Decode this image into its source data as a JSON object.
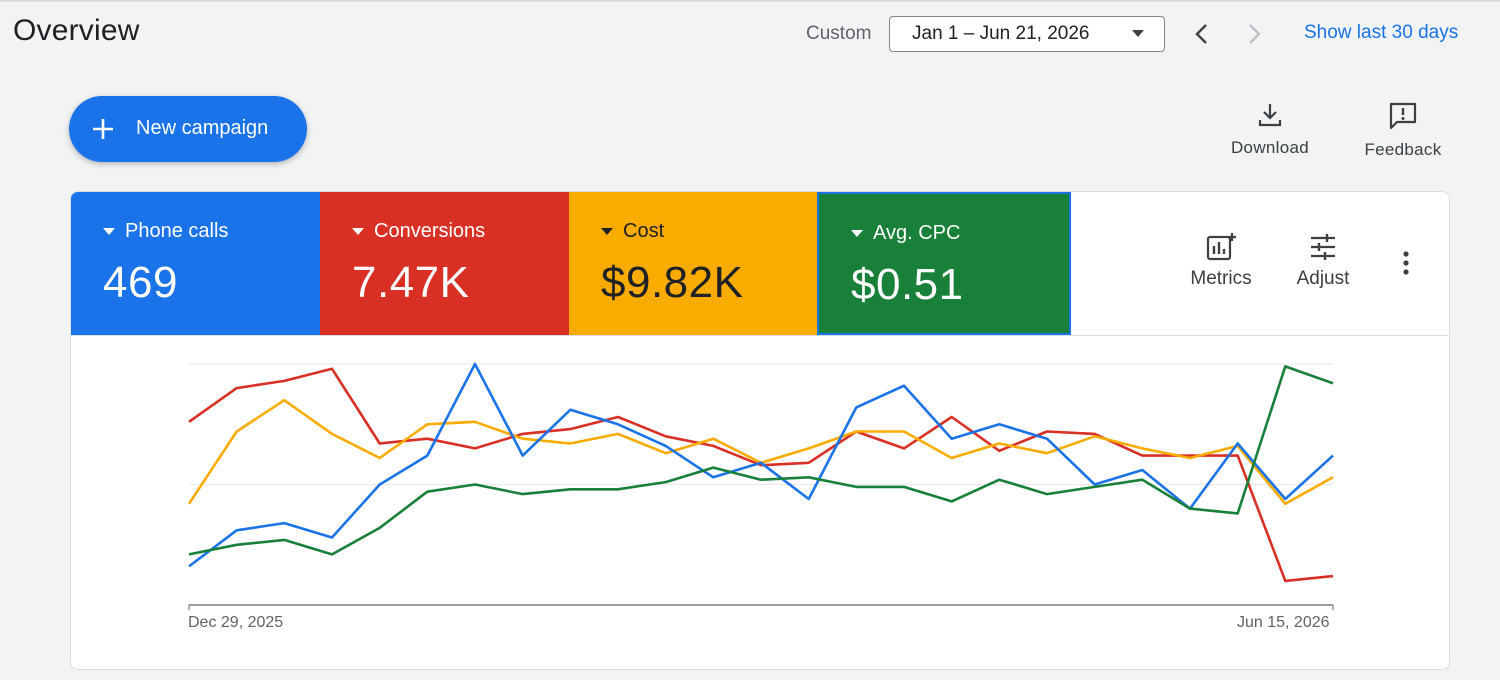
{
  "header": {
    "title": "Overview",
    "custom_label": "Custom",
    "date_range": "Jan 1 – Jun 21, 2026",
    "show_last": "Show last 30 days"
  },
  "actions": {
    "new_campaign": "New campaign",
    "download": "Download",
    "feedback": "Feedback"
  },
  "metrics": [
    {
      "label": "Phone calls",
      "value": "469",
      "color": "#1a73e8"
    },
    {
      "label": "Conversions",
      "value": "7.47K",
      "color": "#d93025"
    },
    {
      "label": "Cost",
      "value": "$9.82K",
      "color": "#f9ab00"
    },
    {
      "label": "Avg. CPC",
      "value": "$0.51",
      "color": "#188038"
    }
  ],
  "card_tools": {
    "metrics": "Metrics",
    "adjust": "Adjust"
  },
  "chart_data": {
    "type": "line",
    "x_start_label": "Dec 29, 2025",
    "x_end_label": "Jun 15, 2026",
    "ylim": [
      0,
      100
    ],
    "grid": true,
    "series": [
      {
        "color": "#d93025",
        "values": [
          76,
          90,
          93,
          98,
          67,
          69,
          65,
          71,
          73,
          78,
          70,
          66,
          58,
          59,
          72,
          65,
          78,
          64,
          72,
          71,
          62,
          62,
          62,
          10,
          12
        ]
      },
      {
        "color": "#f9ab00",
        "values": [
          42,
          72,
          85,
          71,
          61,
          75,
          76,
          69,
          67,
          71,
          63,
          69,
          59,
          65,
          72,
          72,
          61,
          67,
          63,
          70,
          65,
          61,
          66,
          42,
          53
        ]
      },
      {
        "color": "#1a73e8",
        "values": [
          16,
          31,
          34,
          28,
          50,
          62,
          100,
          62,
          81,
          75,
          66,
          53,
          59,
          44,
          82,
          91,
          69,
          75,
          69,
          50,
          56,
          40,
          67,
          44,
          62
        ]
      },
      {
        "color": "#188038",
        "values": [
          21,
          25,
          27,
          21,
          32,
          47,
          50,
          46,
          48,
          48,
          51,
          57,
          52,
          53,
          49,
          49,
          43,
          52,
          46,
          49,
          52,
          40,
          38,
          99,
          92
        ]
      }
    ]
  }
}
